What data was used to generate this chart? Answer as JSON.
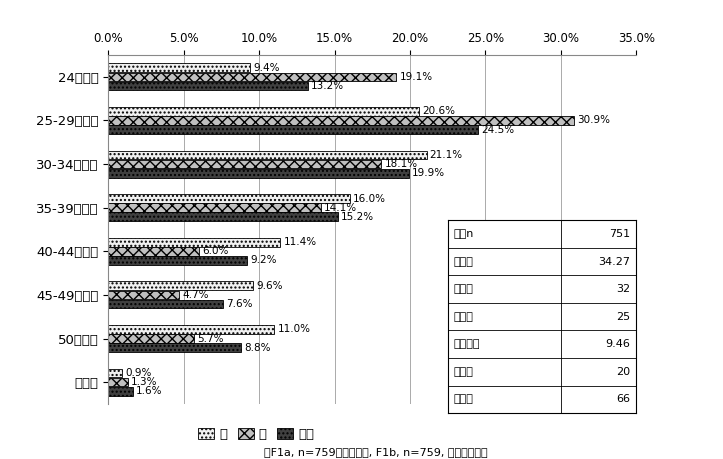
{
  "categories": [
    "24歳以下",
    "25-29歳以下",
    "30-34歳以下",
    "35-39歳以下",
    "40-44歳以下",
    "45-49歳以下",
    "50歳以上",
    "無回答"
  ],
  "male": [
    9.4,
    20.6,
    21.1,
    16.0,
    11.4,
    9.6,
    11.0,
    0.9
  ],
  "female": [
    19.1,
    30.9,
    18.1,
    14.1,
    6.0,
    4.7,
    5.7,
    1.3
  ],
  "total": [
    13.2,
    24.5,
    19.9,
    15.2,
    9.2,
    7.6,
    8.8,
    1.6
  ],
  "male_color": "#f0f0f0",
  "female_color": "#c0c0c0",
  "total_color": "#404040",
  "xlim": [
    0,
    35.0
  ],
  "xticks": [
    0.0,
    5.0,
    10.0,
    15.0,
    20.0,
    25.0,
    30.0,
    35.0
  ],
  "stats_labels": [
    "有効n",
    "平均値",
    "中央値",
    "最頻値",
    "標準偏差",
    "最小値",
    "最大値"
  ],
  "stats_values": [
    "751",
    "34.27",
    "32",
    "25",
    "9.46",
    "20",
    "66"
  ],
  "legend_labels": [
    "男",
    "女",
    "合計"
  ],
  "footnote": "（F1a, n=759，単一回答, F1b, n=759, 数字で記入）",
  "bar_height": 0.2,
  "background_color": "#ffffff",
  "label_fontsize": 7.5,
  "tick_fontsize": 8.5,
  "cat_fontsize": 9.5
}
